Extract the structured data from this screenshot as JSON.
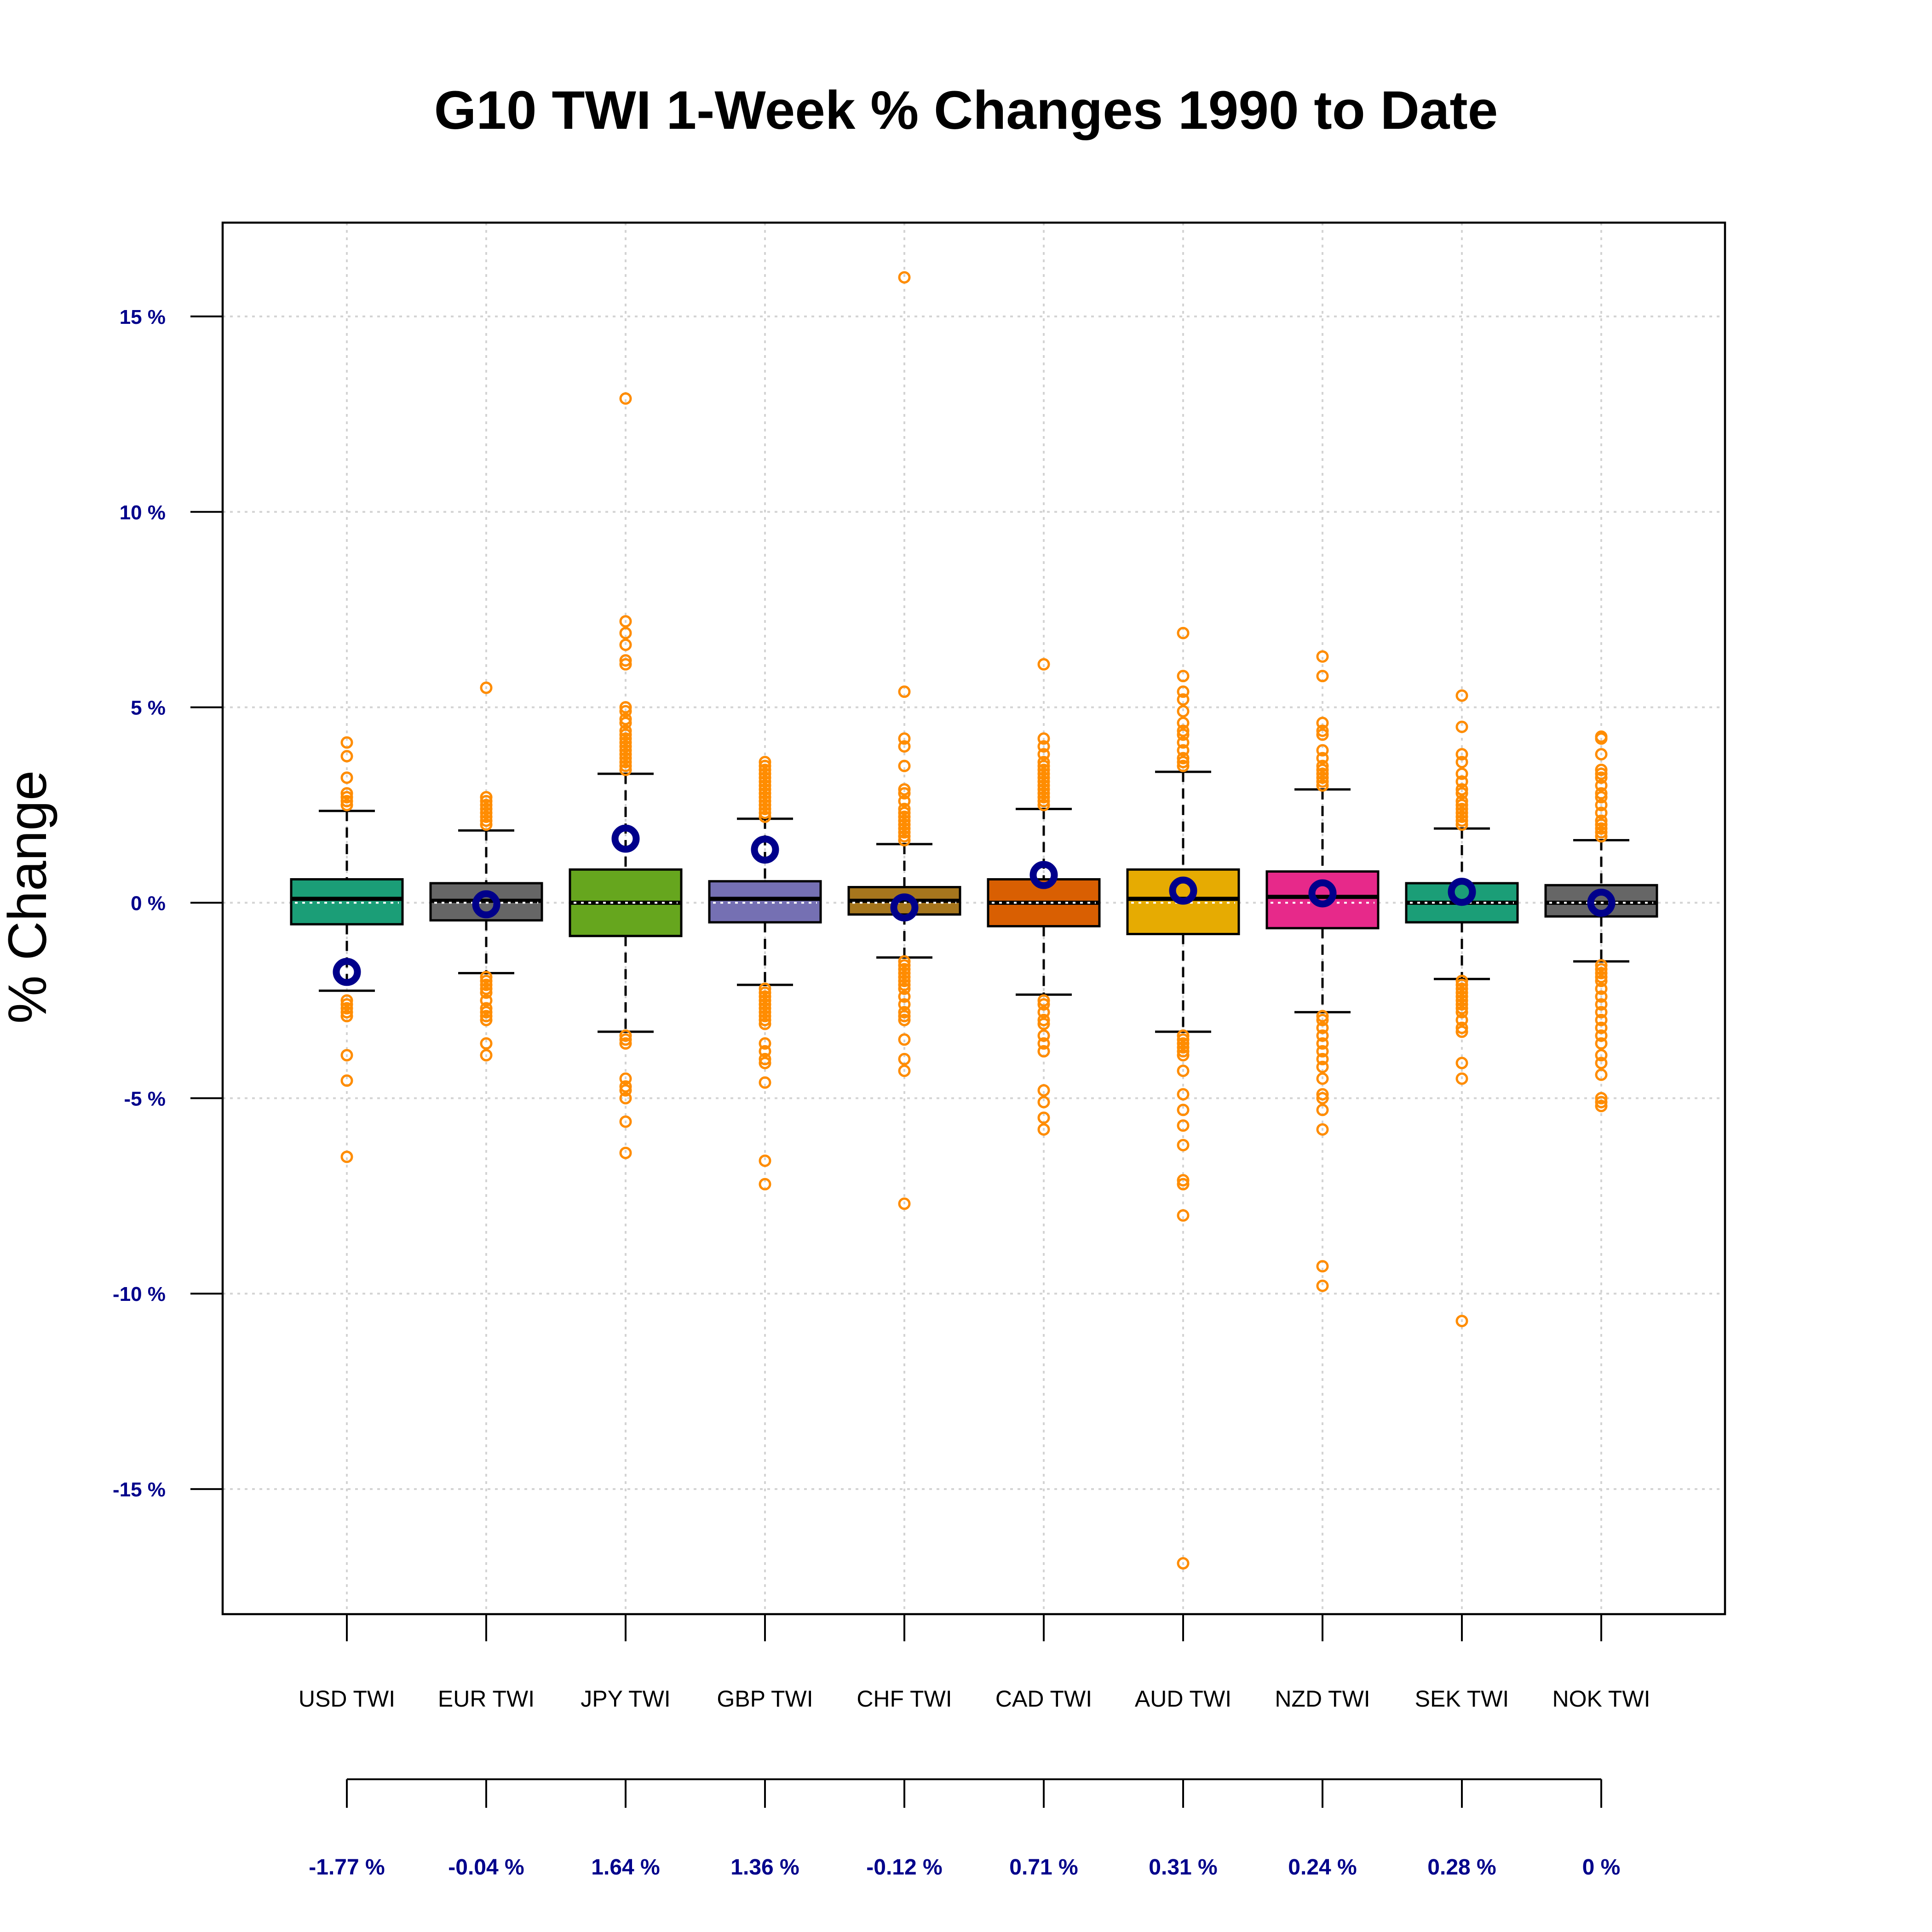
{
  "chart_data": {
    "type": "boxplot",
    "title": "G10 TWI 1-Week % Changes 1990 to Date",
    "ylabel": "% Change",
    "ylim": [
      -18.2,
      17.4
    ],
    "yticks": [
      15,
      10,
      5,
      0,
      -5,
      -10,
      -15
    ],
    "ytick_labels": [
      "15 %",
      "10 %",
      "5 %",
      "0 %",
      "-5 %",
      "-10 %",
      "-15 %"
    ],
    "grid": true,
    "colors": {
      "outlier": "#ff8c00",
      "latest_marker": "#00008b",
      "tick_label": "#00008b",
      "grid": "#d3d3d3"
    },
    "categories": [
      "USD TWI",
      "EUR TWI",
      "JPY TWI",
      "GBP TWI",
      "CHF TWI",
      "CAD TWI",
      "AUD TWI",
      "NZD TWI",
      "SEK TWI",
      "NOK TWI"
    ],
    "latest_labels": [
      "-1.77 %",
      "-0.04 %",
      "1.64 %",
      "1.36 %",
      "-0.12 %",
      "0.71 %",
      "0.31 %",
      "0.24 %",
      "0.28 %",
      "0 %"
    ],
    "boxes": [
      {
        "color": "#1b9e77",
        "whisker_low": -2.25,
        "q1": -0.55,
        "median": 0.1,
        "q3": 0.6,
        "whisker_high": 2.35,
        "latest": -1.77,
        "outliers": [
          4.1,
          3.75,
          3.2,
          2.8,
          2.7,
          2.6,
          2.5,
          -2.5,
          -2.6,
          -2.7,
          -2.8,
          -2.9,
          -3.9,
          -4.55,
          -6.5
        ]
      },
      {
        "color": "#666666",
        "whisker_low": -1.8,
        "q1": -0.45,
        "median": 0.05,
        "q3": 0.5,
        "whisker_high": 1.85,
        "latest": -0.04,
        "outliers": [
          5.5,
          2.7,
          2.6,
          2.5,
          2.4,
          2.3,
          2.2,
          2.1,
          2.0,
          -1.9,
          -2.0,
          -2.1,
          -2.2,
          -2.3,
          -2.5,
          -2.7,
          -2.8,
          -2.9,
          -3.0,
          -3.6,
          -3.9
        ]
      },
      {
        "color": "#66a61e",
        "whisker_low": -3.3,
        "q1": -0.85,
        "median": 0.0,
        "q3": 0.85,
        "whisker_high": 3.3,
        "latest": 1.64,
        "outliers": [
          12.9,
          7.2,
          6.9,
          6.6,
          6.2,
          6.1,
          5.0,
          4.9,
          4.7,
          4.6,
          4.4,
          4.3,
          4.2,
          4.1,
          4.0,
          3.9,
          3.8,
          3.7,
          3.6,
          3.5,
          3.4,
          -3.4,
          -3.5,
          -3.6,
          -4.5,
          -4.7,
          -4.8,
          -5.0,
          -5.6,
          -6.4
        ]
      },
      {
        "color": "#7570b3",
        "whisker_low": -2.1,
        "q1": -0.5,
        "median": 0.1,
        "q3": 0.55,
        "whisker_high": 2.15,
        "latest": 1.36,
        "outliers": [
          3.6,
          3.5,
          3.4,
          3.3,
          3.2,
          3.1,
          3.0,
          2.9,
          2.8,
          2.7,
          2.6,
          2.5,
          2.4,
          2.3,
          2.2,
          -2.2,
          -2.3,
          -2.4,
          -2.5,
          -2.6,
          -2.7,
          -2.8,
          -2.9,
          -3.0,
          -3.1,
          -3.6,
          -3.8,
          -4.0,
          -4.1,
          -4.6,
          -6.6,
          -7.2
        ]
      },
      {
        "color": "#a6761d",
        "whisker_low": -1.4,
        "q1": -0.3,
        "median": 0.05,
        "q3": 0.4,
        "whisker_high": 1.5,
        "latest": -0.12,
        "outliers": [
          16.0,
          5.4,
          4.2,
          4.0,
          3.5,
          2.9,
          2.8,
          2.6,
          2.4,
          2.3,
          2.2,
          2.1,
          2.0,
          1.9,
          1.8,
          1.7,
          1.6,
          -1.5,
          -1.6,
          -1.7,
          -1.8,
          -1.9,
          -2.0,
          -2.1,
          -2.2,
          -2.4,
          -2.6,
          -2.8,
          -2.9,
          -3.0,
          -3.5,
          -4.0,
          -4.3,
          -7.7
        ]
      },
      {
        "color": "#d95f02",
        "whisker_low": -2.35,
        "q1": -0.6,
        "median": 0.0,
        "q3": 0.6,
        "whisker_high": 2.4,
        "latest": 0.71,
        "outliers": [
          6.1,
          4.2,
          4.0,
          3.8,
          3.6,
          3.5,
          3.4,
          3.3,
          3.2,
          3.1,
          3.0,
          2.9,
          2.8,
          2.7,
          2.6,
          2.5,
          -2.5,
          -2.6,
          -2.8,
          -3.0,
          -3.1,
          -3.4,
          -3.6,
          -3.8,
          -4.8,
          -5.1,
          -5.5,
          -5.8
        ]
      },
      {
        "color": "#e6ab02",
        "whisker_low": -3.3,
        "q1": -0.8,
        "median": 0.1,
        "q3": 0.85,
        "whisker_high": 3.35,
        "latest": 0.31,
        "outliers": [
          6.9,
          5.8,
          5.4,
          5.2,
          4.9,
          4.6,
          4.4,
          4.3,
          4.1,
          3.9,
          3.7,
          3.6,
          3.5,
          -3.4,
          -3.5,
          -3.6,
          -3.7,
          -3.8,
          -3.9,
          -4.3,
          -4.9,
          -5.3,
          -5.7,
          -6.2,
          -7.1,
          -7.2,
          -8.0,
          -16.9
        ]
      },
      {
        "color": "#e7298a",
        "whisker_low": -2.8,
        "q1": -0.65,
        "median": 0.15,
        "q3": 0.8,
        "whisker_high": 2.9,
        "latest": 0.24,
        "outliers": [
          6.3,
          5.8,
          4.6,
          4.4,
          4.3,
          3.9,
          3.7,
          3.5,
          3.4,
          3.3,
          3.2,
          3.1,
          3.0,
          -2.9,
          -3.0,
          -3.2,
          -3.4,
          -3.6,
          -3.8,
          -4.0,
          -4.2,
          -4.5,
          -4.9,
          -5.0,
          -5.3,
          -5.8,
          -9.3,
          -9.8
        ]
      },
      {
        "color": "#1b9e77",
        "whisker_low": -1.95,
        "q1": -0.5,
        "median": 0.0,
        "q3": 0.5,
        "whisker_high": 1.9,
        "latest": 0.28,
        "outliers": [
          5.3,
          4.5,
          3.8,
          3.6,
          3.3,
          3.1,
          2.9,
          2.8,
          2.6,
          2.5,
          2.4,
          2.3,
          2.2,
          2.1,
          2.0,
          -2.0,
          -2.1,
          -2.2,
          -2.3,
          -2.4,
          -2.5,
          -2.6,
          -2.7,
          -2.8,
          -3.0,
          -3.2,
          -3.3,
          -4.1,
          -4.5,
          -10.7
        ]
      },
      {
        "color": "#666666",
        "whisker_low": -1.5,
        "q1": -0.35,
        "median": 0.0,
        "q3": 0.45,
        "whisker_high": 1.6,
        "latest": 0.0,
        "outliers": [
          4.25,
          4.2,
          3.8,
          3.4,
          3.3,
          3.2,
          3.0,
          2.8,
          2.7,
          2.5,
          2.3,
          2.1,
          2.0,
          1.9,
          1.8,
          1.7,
          -1.6,
          -1.7,
          -1.8,
          -1.9,
          -2.0,
          -2.2,
          -2.4,
          -2.6,
          -2.8,
          -3.0,
          -3.2,
          -3.4,
          -3.6,
          -3.9,
          -4.1,
          -4.4,
          -5.0,
          -5.1,
          -5.2
        ]
      }
    ]
  }
}
